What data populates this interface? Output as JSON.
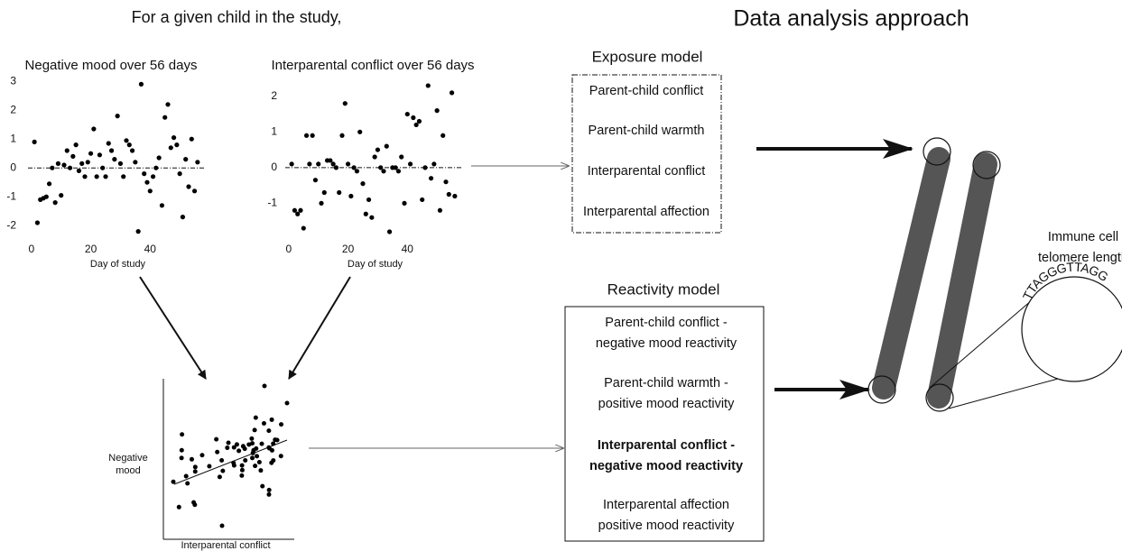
{
  "header": {
    "left": "For a given child in the study,",
    "right": "Data analysis approach"
  },
  "chart_data": [
    {
      "type": "scatter",
      "title": "Negative mood over 56 days",
      "x_label": "Day of study",
      "color": "#000000",
      "x": [
        1,
        2,
        3,
        4,
        5,
        6,
        7,
        8,
        9,
        10,
        11,
        12,
        13,
        14,
        15,
        16,
        17,
        18,
        19,
        20,
        21,
        22,
        23,
        24,
        25,
        26,
        27,
        28,
        29,
        30,
        31,
        32,
        33,
        34,
        35,
        36,
        37,
        38,
        39,
        40,
        41,
        42,
        43,
        44,
        45,
        46,
        47,
        48,
        49,
        50,
        51,
        52,
        53,
        54,
        55,
        56
      ],
      "values": [
        0.9,
        -1.9,
        -1.1,
        -1.05,
        -1.0,
        -0.55,
        0.0,
        -1.2,
        0.15,
        -0.95,
        0.1,
        0.6,
        0.0,
        0.4,
        0.8,
        -0.1,
        0.15,
        -0.3,
        0.2,
        0.5,
        1.35,
        -0.3,
        0.45,
        0.0,
        -0.3,
        0.85,
        0.6,
        0.3,
        1.8,
        0.15,
        -0.3,
        0.95,
        0.8,
        0.6,
        0.2,
        -2.2,
        2.9,
        -0.2,
        -0.5,
        -0.8,
        -0.3,
        0.0,
        0.35,
        -1.3,
        1.75,
        2.2,
        0.7,
        1.05,
        0.8,
        -0.2,
        -1.7,
        0.3,
        -0.65,
        1.0,
        -0.8,
        0.2
      ],
      "xlim": [
        -3,
        60
      ],
      "ylim": [
        -2.4,
        3.1
      ],
      "xticks": [
        0,
        20,
        40
      ],
      "yticks": [
        3,
        2,
        1,
        0,
        -1,
        -2
      ]
    },
    {
      "type": "scatter",
      "title": "Interparental conflict over 56 days",
      "x_label": "Day of study",
      "color": "#000000",
      "x": [
        1,
        2,
        3,
        4,
        5,
        6,
        7,
        8,
        9,
        10,
        11,
        12,
        13,
        14,
        15,
        16,
        17,
        18,
        19,
        20,
        21,
        22,
        23,
        24,
        25,
        26,
        27,
        28,
        29,
        30,
        31,
        32,
        33,
        34,
        35,
        36,
        37,
        38,
        39,
        40,
        41,
        42,
        43,
        44,
        45,
        46,
        47,
        48,
        49,
        50,
        51,
        52,
        53,
        54,
        55,
        56
      ],
      "values": [
        0.1,
        -1.2,
        -1.3,
        -1.2,
        -1.7,
        0.9,
        0.1,
        0.9,
        -0.35,
        0.1,
        -1.0,
        -0.7,
        0.2,
        0.2,
        0.1,
        0.0,
        -0.7,
        0.9,
        1.8,
        0.1,
        -0.8,
        0.0,
        -0.1,
        1.0,
        -0.45,
        -1.3,
        -0.9,
        -1.4,
        0.3,
        0.5,
        0.0,
        -0.1,
        0.6,
        -1.8,
        0.0,
        0.0,
        -0.1,
        0.3,
        -1.0,
        1.5,
        0.1,
        1.4,
        1.2,
        1.3,
        -0.9,
        0.0,
        2.3,
        -0.3,
        0.1,
        1.6,
        -1.2,
        0.9,
        -0.4,
        -0.75,
        2.1,
        -0.8
      ],
      "xlim": [
        -3,
        60
      ],
      "ylim": [
        -1.8,
        2.4
      ],
      "xticks": [
        0,
        20,
        40
      ],
      "yticks": [
        2,
        1,
        0,
        -1
      ]
    }
  ],
  "association": {
    "x_label": "Interparental conflict",
    "y_label": [
      "Negative",
      "mood"
    ]
  },
  "exposure_model": {
    "title": "Exposure model",
    "items": [
      "Parent-child conflict",
      "Parent-child warmth",
      "Interparental conflict",
      "Interparental affection"
    ]
  },
  "reactivity_model": {
    "title": "Reactivity model",
    "items": [
      {
        "lines": [
          "Parent-child conflict -",
          "negative mood reactivity"
        ],
        "bold": false
      },
      {
        "lines": [
          "Parent-child warmth -",
          "positive mood reactivity"
        ],
        "bold": false
      },
      {
        "lines": [
          "Interparental conflict -",
          "negative mood reactivity"
        ],
        "bold": true
      },
      {
        "lines": [
          "Interparental affection",
          "positive mood reactivity"
        ],
        "bold": false
      }
    ]
  },
  "chromosome": {
    "label": [
      "Immune cell",
      "telomere length"
    ],
    "sequence": "TTAGGGTTAGG"
  }
}
